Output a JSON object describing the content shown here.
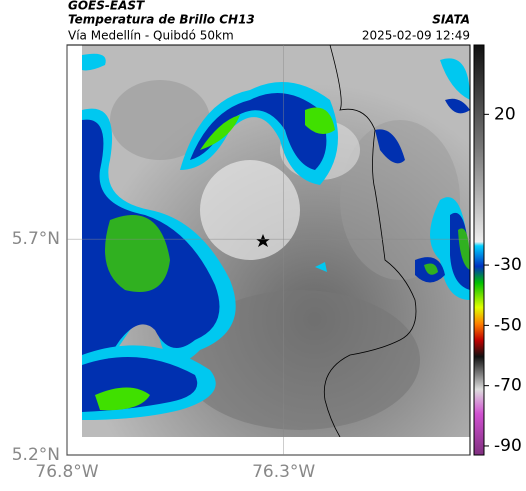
{
  "header": {
    "satellite": "GOES-EAST",
    "title": "Temperatura de Brillo CH13",
    "subtitle": "Vía Medellín - Quibdó 50km",
    "source": "SIATA",
    "datetime": "2025-02-09 12:49"
  },
  "map": {
    "xlim": [
      -76.8,
      -75.87
    ],
    "ylim": [
      5.2,
      6.15
    ],
    "xticks": [
      {
        "value": -76.8,
        "label": "76.8°W"
      },
      {
        "value": -76.3,
        "label": "76.3°W"
      }
    ],
    "yticks": [
      {
        "value": 5.7,
        "label": "5.7°N"
      },
      {
        "value": 5.2,
        "label": "5.2°N"
      }
    ]
  },
  "colorbar": {
    "lim": [
      43,
      -93
    ],
    "ticks": [
      20,
      -30,
      -50,
      -70,
      -90
    ]
  }
}
